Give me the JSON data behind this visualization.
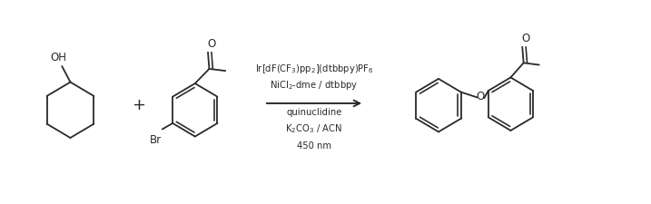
{
  "background_color": "#ffffff",
  "line_color": "#2a2a2a",
  "line_width": 1.3,
  "reagent_line1": "Ir[dF(CF$_3$)pp$_2$](dtbbpy)PF$_6$",
  "reagent_line2": "NiCl$_2$-dme / dtbbpy",
  "reagent_line3": "quinuclidine",
  "reagent_line4": "K$_2$CO$_3$ / ACN",
  "reagent_line5": "450 nm",
  "font_size_reagent": 7.2,
  "font_size_atom": 8.5,
  "fig_width": 7.17,
  "fig_height": 2.25,
  "dpi": 100,
  "xlim": [
    0,
    10
  ],
  "ylim": [
    0,
    3
  ]
}
